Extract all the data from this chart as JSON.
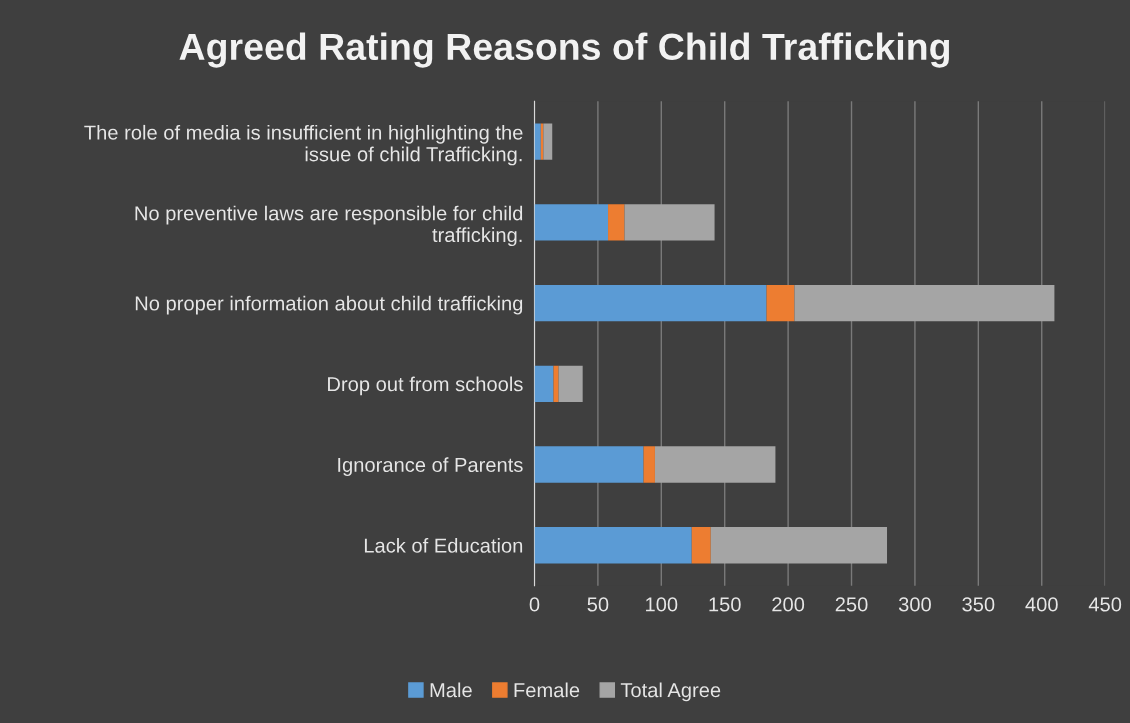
{
  "chart_data": {
    "type": "bar",
    "orientation": "horizontal",
    "stacked": true,
    "title": "Agreed Rating Reasons of Child Trafficking",
    "categories": [
      "The role of media is insufficient in highlighting the issue of child Trafficking.",
      "No preventive laws are responsible for child trafficking.",
      "No proper information about child trafficking",
      "Drop out from schools",
      "Ignorance of Parents",
      "Lack of Education"
    ],
    "series": [
      {
        "name": "Male",
        "color": "#5b9bd5",
        "values": [
          5,
          58,
          183,
          15,
          86,
          124
        ]
      },
      {
        "name": "Female",
        "color": "#ed7d31",
        "values": [
          2,
          13,
          22,
          4,
          9,
          15
        ]
      },
      {
        "name": "Total Agree",
        "color": "#a5a5a5",
        "values": [
          7,
          71,
          205,
          19,
          95,
          139
        ]
      }
    ],
    "xlim": [
      0,
      450
    ],
    "xticks": [
      0,
      50,
      100,
      150,
      200,
      250,
      300,
      350,
      400,
      450
    ],
    "grid": "x",
    "legend": "bottom"
  }
}
